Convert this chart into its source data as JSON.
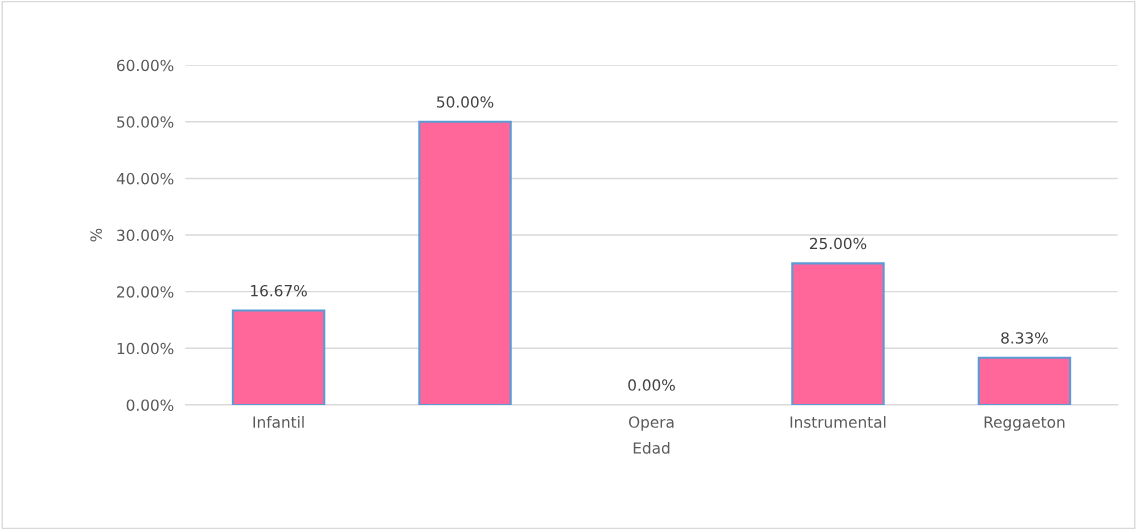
{
  "chart_data": {
    "type": "bar",
    "xlabel": "Edad",
    "ylabel": "%",
    "categories": [
      "Infantil",
      null,
      "Opera",
      "Instrumental",
      "Reggaeton"
    ],
    "series": [
      {
        "color": "#ff6699",
        "values": [
          16.67,
          50.0,
          0.0,
          25.0,
          8.33
        ],
        "value_labels": [
          "16.67%",
          "50.00%",
          "0.00%",
          "25.00%",
          "8.33%"
        ]
      }
    ],
    "ylim": [
      0,
      60
    ],
    "yticks": [
      {
        "value": 0,
        "label": "0.00%"
      },
      {
        "value": 10,
        "label": "10.00%"
      },
      {
        "value": 20,
        "label": "20.00%"
      },
      {
        "value": 30,
        "label": "30.00%"
      },
      {
        "value": 40,
        "label": "40.00%"
      },
      {
        "value": 50,
        "label": "50.00%"
      },
      {
        "value": 60,
        "label": "60.00%"
      }
    ],
    "grid": "y"
  }
}
